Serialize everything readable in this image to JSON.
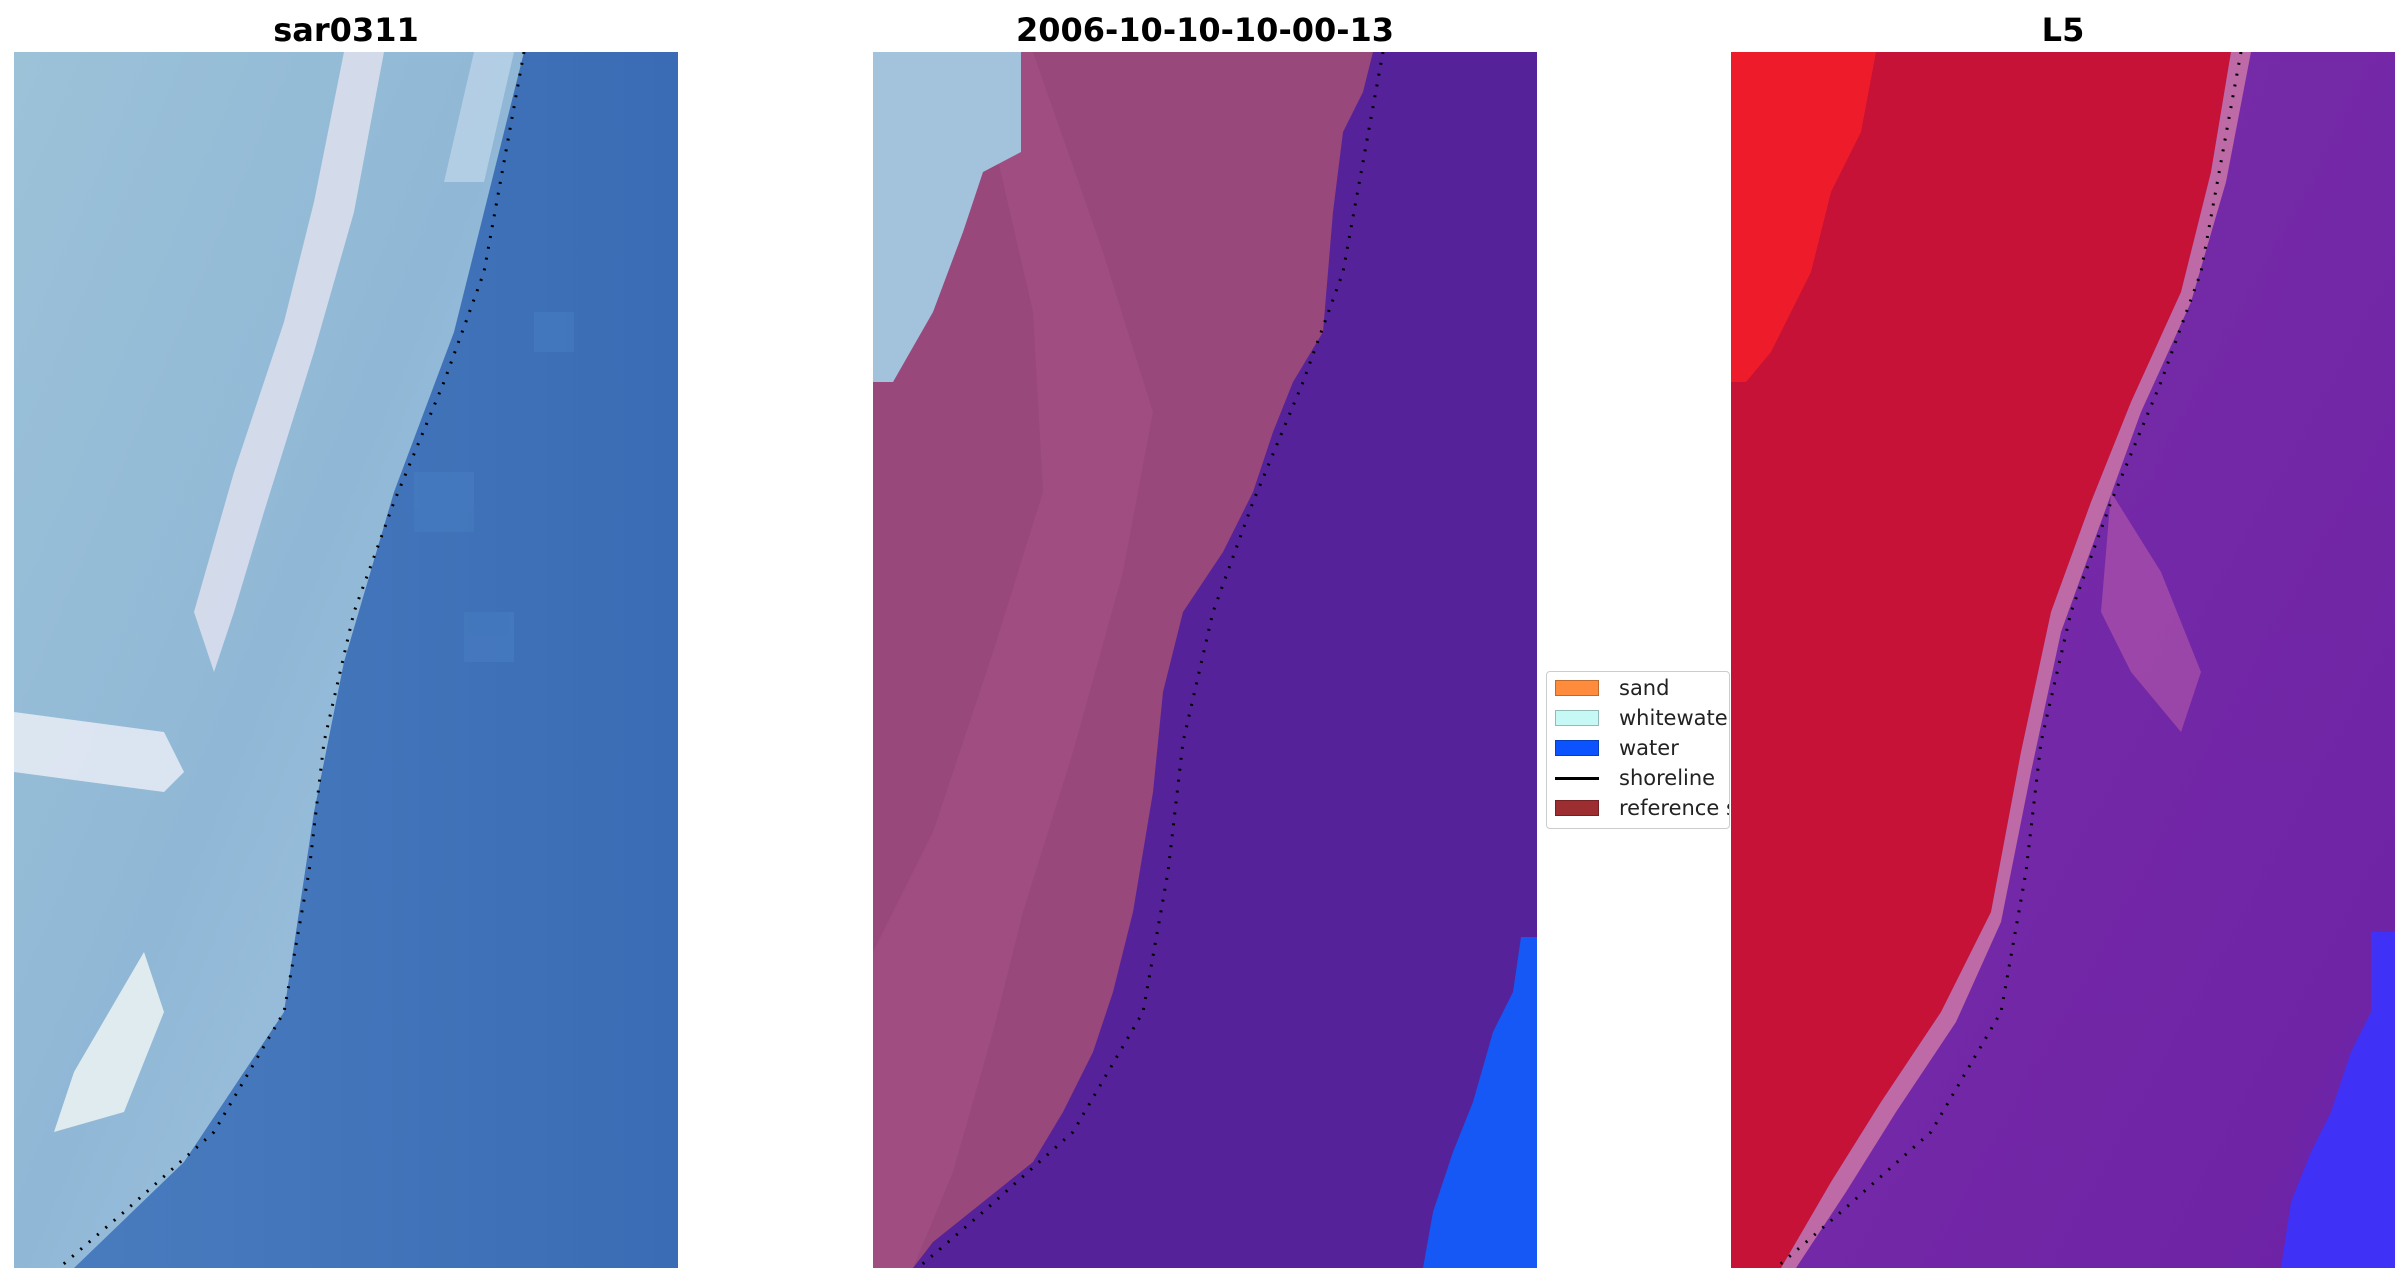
{
  "panels": [
    {
      "title": "sar0311",
      "image": "satellite-rgb"
    },
    {
      "title": "2006-10-10-10-00-13",
      "image": "classified-overlay"
    },
    {
      "title": "L5",
      "image": "index-map"
    }
  ],
  "legend": {
    "items": [
      {
        "label": "sand",
        "color": "#ff8c3c",
        "kind": "patch"
      },
      {
        "label": "whitewater",
        "color": "#c6f8f5",
        "kind": "patch"
      },
      {
        "label": "water",
        "color": "#0a53ff",
        "kind": "patch"
      },
      {
        "label": "shoreline",
        "color": "#000000",
        "kind": "line"
      },
      {
        "label": "reference shoreline buffer",
        "color": "#9c2d31",
        "kind": "patch"
      }
    ]
  },
  "colors": {
    "sea": "#3d70b8",
    "land_rgb": "#95bcd6",
    "classified_land": "#98487a",
    "classified_water": "#55229a",
    "classified_sky": "#a3c3dc",
    "classified_blue": "#1558f5",
    "index_land": "#c51236",
    "index_bright": "#ee1c2a",
    "index_water": "#7425a4",
    "index_blue": "#3a34ff"
  }
}
